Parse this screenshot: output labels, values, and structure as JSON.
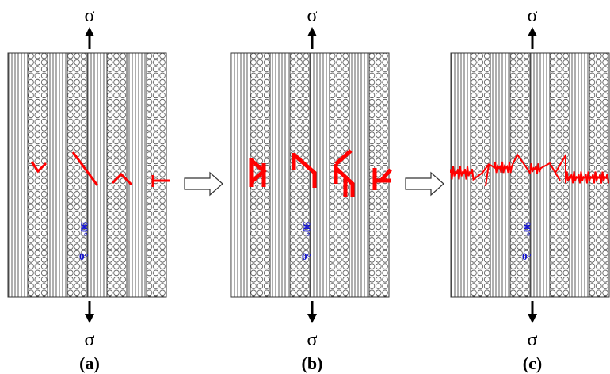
{
  "panels": [
    {
      "label": "(a)",
      "sigma_top": "σ",
      "sigma_bottom": "σ",
      "angle_90": "90°",
      "angle_0": "0°"
    },
    {
      "label": "(b)",
      "sigma_top": "σ",
      "sigma_bottom": "σ",
      "angle_90": "90°",
      "angle_0": "0°"
    },
    {
      "label": "(c)",
      "sigma_top": "σ",
      "sigma_bottom": "σ",
      "angle_90": "90°",
      "angle_0": "0°"
    }
  ]
}
